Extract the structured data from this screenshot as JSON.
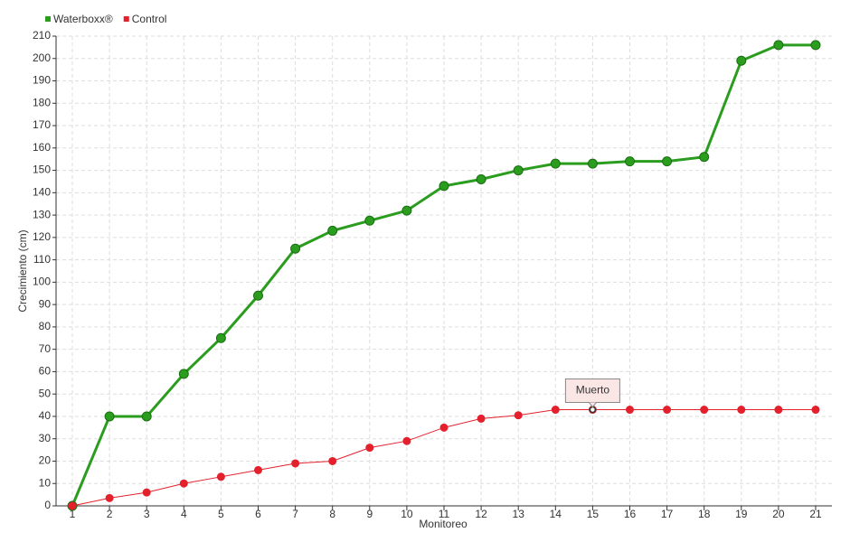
{
  "chart_data": {
    "type": "line",
    "x_label": "Monitoreo",
    "y_label": "Crecimiento (cm)",
    "categories": [
      "1",
      "2",
      "3",
      "4",
      "5",
      "6",
      "7",
      "8",
      "9",
      "10",
      "11",
      "12",
      "13",
      "14",
      "15",
      "16",
      "17",
      "18",
      "19",
      "20",
      "21"
    ],
    "series": [
      {
        "name": "Waterboxx®",
        "color": "#2a9d1f",
        "values": [
          0,
          40,
          40,
          59,
          75,
          94,
          115,
          123,
          127.5,
          132,
          143,
          146,
          150,
          153,
          153,
          154,
          154,
          156,
          199,
          206,
          206
        ]
      },
      {
        "name": "Control",
        "color": "#e3202c",
        "values": [
          0,
          3.5,
          6,
          10,
          13,
          16,
          19,
          20,
          26,
          29,
          35,
          39,
          40.5,
          43,
          43,
          43,
          43,
          43,
          43,
          43,
          43
        ]
      }
    ],
    "ylim": [
      0,
      210
    ],
    "yticks": [
      0,
      10,
      20,
      30,
      40,
      50,
      60,
      70,
      80,
      90,
      100,
      110,
      120,
      130,
      140,
      150,
      160,
      170,
      180,
      190,
      200,
      210
    ],
    "grid": true,
    "legend": "top-left",
    "annotation": {
      "label": "Muerto",
      "series": "Control",
      "x": "15"
    }
  }
}
